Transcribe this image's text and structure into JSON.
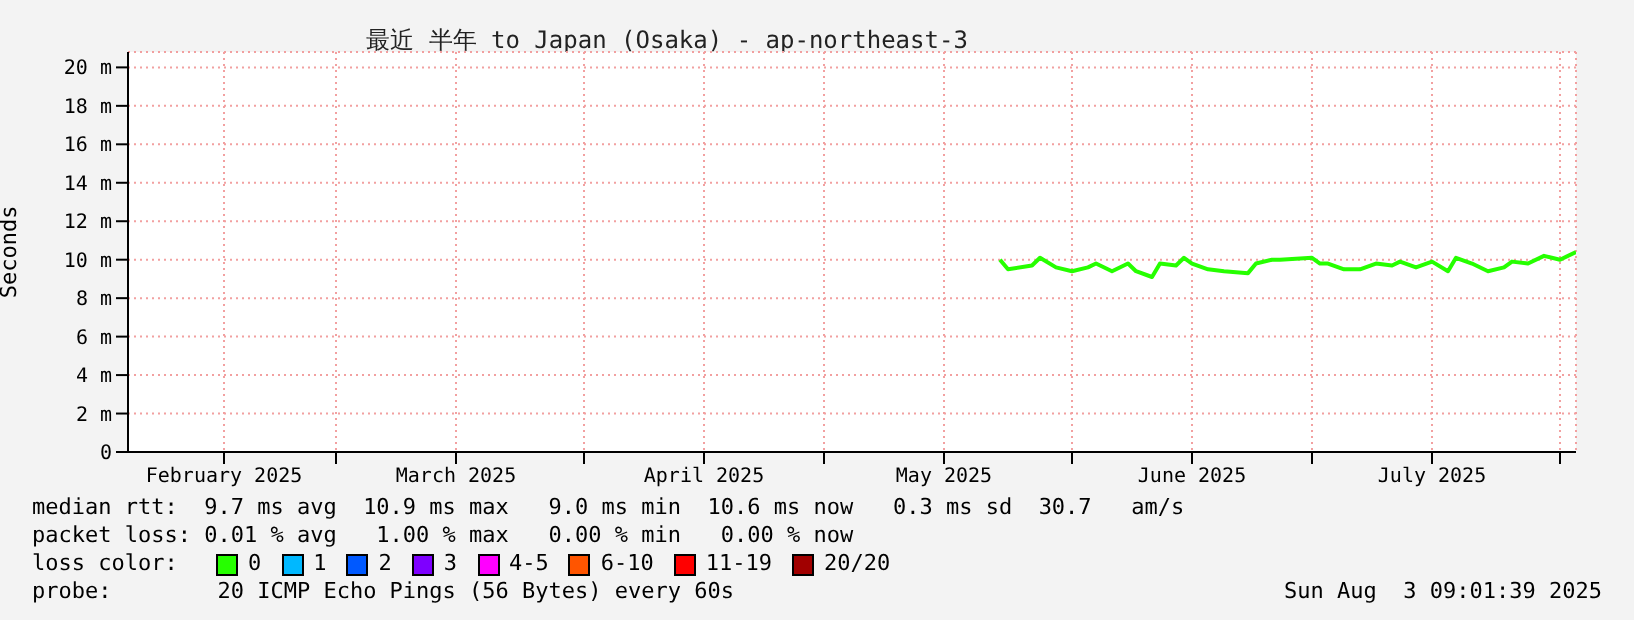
{
  "chart_data": {
    "type": "line",
    "title": "最近 半年 to Japan (Osaka) - ap-northeast-3",
    "ylabel": "Seconds",
    "xlim": [
      "2025-02-03",
      "2025-08-03"
    ],
    "xticks": [
      {
        "value": "2025-02-15",
        "label": "February 2025"
      },
      {
        "value": "2025-03-01",
        "label": null
      },
      {
        "value": "2025-03-16",
        "label": "March 2025"
      },
      {
        "value": "2025-04-01",
        "label": null
      },
      {
        "value": "2025-04-16",
        "label": "April 2025"
      },
      {
        "value": "2025-05-01",
        "label": null
      },
      {
        "value": "2025-05-16",
        "label": "May 2025"
      },
      {
        "value": "2025-06-01",
        "label": null
      },
      {
        "value": "2025-06-16",
        "label": "June 2025"
      },
      {
        "value": "2025-07-01",
        "label": null
      },
      {
        "value": "2025-07-16",
        "label": "July 2025"
      },
      {
        "value": "2025-08-01",
        "label": null
      }
    ],
    "ylim": [
      0,
      20.8
    ],
    "yticks": [
      0,
      {
        "value": 2,
        "label": "2 m"
      },
      {
        "value": 4,
        "label": "4 m"
      },
      {
        "value": 6,
        "label": "6 m"
      },
      {
        "value": 8,
        "label": "8 m"
      },
      {
        "value": 10,
        "label": "10 m"
      },
      {
        "value": 12,
        "label": "12 m"
      },
      {
        "value": 14,
        "label": "14 m"
      },
      {
        "value": 16,
        "label": "16 m"
      },
      {
        "value": 18,
        "label": "18 m"
      },
      {
        "value": 20,
        "label": "20 m"
      }
    ],
    "grid": true,
    "legend": "bottom",
    "legend_title": "loss color:",
    "x": [
      "2025-05-23",
      "2025-05-24",
      "2025-05-27",
      "2025-05-28",
      "2025-05-30",
      "2025-06-01",
      "2025-06-03",
      "2025-06-04",
      "2025-06-06",
      "2025-06-08",
      "2025-06-09",
      "2025-06-11",
      "2025-06-12",
      "2025-06-14",
      "2025-06-15",
      "2025-06-16",
      "2025-06-18",
      "2025-06-20",
      "2025-06-23",
      "2025-06-24",
      "2025-06-26",
      "2025-06-27",
      "2025-07-01",
      "2025-07-02",
      "2025-07-03",
      "2025-07-05",
      "2025-07-07",
      "2025-07-09",
      "2025-07-11",
      "2025-07-12",
      "2025-07-14",
      "2025-07-16",
      "2025-07-18",
      "2025-07-19",
      "2025-07-21",
      "2025-07-23",
      "2025-07-25",
      "2025-07-26",
      "2025-07-28",
      "2025-07-30",
      "2025-08-01",
      "2025-08-03"
    ],
    "series": [
      {
        "name": "0",
        "color": "#26ff00",
        "values": [
          10.0,
          9.5,
          9.7,
          10.1,
          9.6,
          9.4,
          9.6,
          9.8,
          9.4,
          9.8,
          9.4,
          9.1,
          9.8,
          9.7,
          10.1,
          9.8,
          9.5,
          9.4,
          9.3,
          9.8,
          10.0,
          10.0,
          10.1,
          9.8,
          9.8,
          9.5,
          9.5,
          9.8,
          9.7,
          9.9,
          9.6,
          9.9,
          9.4,
          10.1,
          9.8,
          9.4,
          9.6,
          9.9,
          9.8,
          10.2,
          10.0,
          10.4
        ]
      },
      {
        "name": "1",
        "color": "#00b8ff",
        "values": [
          null,
          null,
          null,
          null,
          null,
          null,
          null,
          null,
          null,
          null,
          null,
          null,
          null,
          null,
          null,
          null,
          null,
          null,
          null,
          null,
          null,
          null,
          null,
          null,
          null,
          null,
          null,
          null,
          null,
          null,
          null,
          null,
          null,
          null,
          null,
          null,
          null,
          null,
          null,
          null,
          null,
          null
        ]
      },
      {
        "name": "2",
        "color": "#0059ff",
        "values": [
          null,
          null,
          null,
          null,
          null,
          null,
          null,
          null,
          null,
          null,
          null,
          null,
          null,
          null,
          null,
          null,
          null,
          null,
          null,
          null,
          null,
          null,
          null,
          null,
          null,
          null,
          null,
          null,
          null,
          null,
          null,
          null,
          null,
          null,
          null,
          null,
          null,
          null,
          null,
          null,
          null,
          null
        ]
      },
      {
        "name": "3",
        "color": "#7e00ff",
        "values": [
          null,
          null,
          null,
          null,
          null,
          null,
          null,
          null,
          null,
          null,
          null,
          null,
          null,
          null,
          null,
          null,
          null,
          null,
          null,
          null,
          null,
          null,
          null,
          null,
          null,
          null,
          null,
          null,
          null,
          null,
          null,
          null,
          null,
          null,
          null,
          null,
          null,
          null,
          null,
          null,
          null,
          null
        ]
      },
      {
        "name": "4-5",
        "color": "#ff00ff",
        "values": [
          null,
          null,
          null,
          null,
          null,
          null,
          null,
          null,
          null,
          null,
          null,
          null,
          null,
          null,
          null,
          null,
          null,
          null,
          null,
          null,
          null,
          null,
          null,
          null,
          null,
          null,
          null,
          null,
          null,
          null,
          null,
          null,
          null,
          null,
          null,
          null,
          null,
          null,
          null,
          null,
          null,
          null
        ]
      },
      {
        "name": "6-10",
        "color": "#ff5500",
        "values": [
          null,
          null,
          null,
          null,
          null,
          null,
          null,
          null,
          null,
          null,
          null,
          null,
          null,
          null,
          null,
          null,
          null,
          null,
          null,
          null,
          null,
          null,
          null,
          null,
          null,
          null,
          null,
          null,
          null,
          null,
          null,
          null,
          null,
          null,
          null,
          null,
          null,
          null,
          null,
          null,
          null,
          null
        ]
      },
      {
        "name": "11-19",
        "color": "#ff0000",
        "values": [
          null,
          null,
          null,
          null,
          null,
          null,
          null,
          null,
          null,
          null,
          null,
          null,
          null,
          null,
          null,
          null,
          null,
          null,
          null,
          null,
          null,
          null,
          null,
          null,
          null,
          null,
          null,
          null,
          null,
          null,
          null,
          null,
          null,
          null,
          null,
          null,
          null,
          null,
          null,
          null,
          null,
          null
        ]
      },
      {
        "name": "20/20",
        "color": "#a10000",
        "values": [
          null,
          null,
          null,
          null,
          null,
          null,
          null,
          null,
          null,
          null,
          null,
          null,
          null,
          null,
          null,
          null,
          null,
          null,
          null,
          null,
          null,
          null,
          null,
          null,
          null,
          null,
          null,
          null,
          null,
          null,
          null,
          null,
          null,
          null,
          null,
          null,
          null,
          null,
          null,
          null,
          null,
          null
        ]
      }
    ],
    "annotations": [
      "median rtt:  9.7 ms avg  10.9 ms max   9.0 ms min  10.6 ms now   0.3 ms sd  30.7   am/s",
      "packet loss: 0.01 % avg   1.00 % max   0.00 % min   0.00 % now",
      "probe:        20 ICMP Echo Pings (56 Bytes) every 60s",
      "Sun Aug  3 09:01:39 2025"
    ]
  }
}
